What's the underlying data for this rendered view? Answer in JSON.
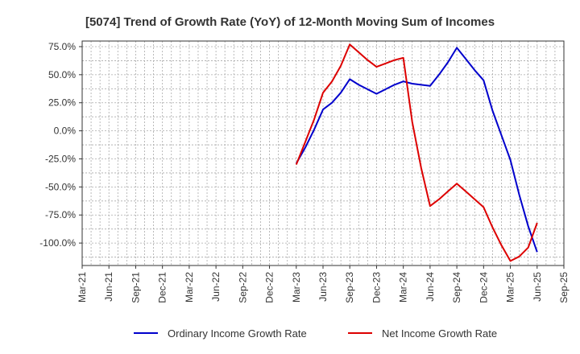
{
  "chart_data": {
    "type": "line",
    "title": "[5074]  Trend of Growth Rate (YoY) of 12-Month Moving Sum of Incomes",
    "xlabel": "",
    "ylabel": "",
    "x_ticks": [
      "Mar-21",
      "Jun-21",
      "Sep-21",
      "Dec-21",
      "Mar-22",
      "Jun-22",
      "Sep-22",
      "Dec-22",
      "Mar-23",
      "Jun-23",
      "Sep-23",
      "Dec-23",
      "Mar-24",
      "Jun-24",
      "Sep-24",
      "Dec-24",
      "Mar-25",
      "Jun-25",
      "Sep-25"
    ],
    "y_ticks": [
      "75.0%",
      "50.0%",
      "25.0%",
      "0.0%",
      "-25.0%",
      "-50.0%",
      "-75.0%",
      "-100.0%"
    ],
    "ylim": [
      -120,
      80
    ],
    "grid": true,
    "legend_position": "bottom",
    "colors": {
      "ordinary": "#0000cc",
      "net": "#dd0000",
      "grid": "#aaaaaa",
      "axis": "#333333"
    },
    "series": [
      {
        "name": "Ordinary Income Growth Rate",
        "color": "#0000cc",
        "x": [
          "Mar-23",
          "Apr-23",
          "May-23",
          "Jun-23",
          "Jul-23",
          "Aug-23",
          "Sep-23",
          "Oct-23",
          "Nov-23",
          "Dec-23",
          "Jan-24",
          "Feb-24",
          "Mar-24",
          "Apr-24",
          "May-24",
          "Jun-24",
          "Jul-24",
          "Aug-24",
          "Sep-24",
          "Oct-24",
          "Nov-24",
          "Dec-24",
          "Jan-25",
          "Feb-25",
          "Mar-25",
          "Apr-25",
          "May-25",
          "Jun-25"
        ],
        "values": [
          -29,
          -15,
          1,
          19,
          25,
          34,
          46,
          41,
          37,
          33,
          37,
          41,
          44,
          42,
          41,
          40,
          50,
          61,
          74,
          64,
          54,
          45,
          18,
          -4,
          -26,
          -57,
          -85,
          -108
        ]
      },
      {
        "name": "Net Income Growth Rate",
        "color": "#dd0000",
        "x": [
          "Mar-23",
          "Apr-23",
          "May-23",
          "Jun-23",
          "Jul-23",
          "Aug-23",
          "Sep-23",
          "Oct-23",
          "Nov-23",
          "Dec-23",
          "Jan-24",
          "Feb-24",
          "Mar-24",
          "Apr-24",
          "May-24",
          "Jun-24",
          "Jul-24",
          "Aug-24",
          "Sep-24",
          "Oct-24",
          "Nov-24",
          "Dec-24",
          "Jan-25",
          "Feb-25",
          "Mar-25",
          "Apr-25",
          "May-25",
          "Jun-25"
        ],
        "values": [
          -30,
          -10,
          10,
          34,
          44,
          58,
          77,
          70,
          63,
          57,
          60,
          63,
          65,
          8,
          -33,
          -67,
          -61,
          -54,
          -47,
          -54,
          -61,
          -68,
          -86,
          -102,
          -116,
          -112,
          -104,
          -82
        ]
      }
    ]
  }
}
